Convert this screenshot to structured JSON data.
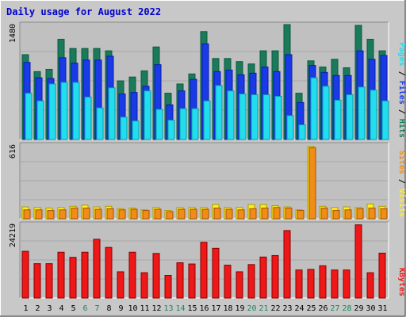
{
  "chart_data": {
    "type": "bar",
    "title": "Daily usage for August 2022",
    "categories": [
      "1",
      "2",
      "3",
      "4",
      "5",
      "6",
      "7",
      "8",
      "9",
      "10",
      "11",
      "12",
      "13",
      "14",
      "15",
      "16",
      "17",
      "18",
      "19",
      "20",
      "21",
      "22",
      "23",
      "24",
      "25",
      "26",
      "27",
      "28",
      "29",
      "30",
      "31"
    ],
    "weekend_days": [
      "6",
      "7",
      "13",
      "14",
      "20",
      "21",
      "27",
      "28"
    ],
    "panels": [
      {
        "id": "hits",
        "ymax_label": "1480",
        "ylim": [
          0,
          1480
        ],
        "labels": [
          "Pages",
          "Files",
          "Hits"
        ],
        "series": [
          {
            "name": "Hits",
            "color": "#1a7a5a",
            "values": [
              1100,
              880,
              910,
              1300,
              1180,
              1180,
              1180,
              1150,
              760,
              810,
              890,
              1200,
              600,
              720,
              850,
              1400,
              1050,
              1050,
              1010,
              980,
              1150,
              1150,
              1490,
              600,
              1020,
              940,
              1040,
              930,
              1480,
              1300,
              1150
            ]
          },
          {
            "name": "Files",
            "color": "#1a3ae8",
            "values": [
              1000,
              800,
              790,
              1060,
              990,
              1030,
              1030,
              1080,
              590,
              610,
              690,
              970,
              450,
              630,
              780,
              1240,
              880,
              900,
              840,
              860,
              940,
              880,
              1100,
              480,
              960,
              870,
              830,
              830,
              1150,
              1040,
              1090
            ]
          },
          {
            "name": "Pages",
            "color": "#22ddee",
            "values": [
              600,
              500,
              720,
              740,
              740,
              550,
              410,
              670,
              290,
              240,
              630,
              390,
              250,
              400,
              400,
              500,
              700,
              630,
              590,
              580,
              580,
              560,
              310,
              190,
              800,
              690,
              510,
              580,
              680,
              640,
              500
            ]
          }
        ]
      },
      {
        "id": "visits",
        "ymax_label": "616",
        "ylim": [
          0,
          616
        ],
        "labels": [
          "Sites",
          "Visits"
        ],
        "series": [
          {
            "name": "Visits",
            "color": "#ffee22",
            "values": [
              100,
              95,
              90,
              95,
              105,
              115,
              100,
              105,
              85,
              90,
              75,
              95,
              70,
              95,
              95,
              95,
              120,
              95,
              95,
              120,
              120,
              110,
              100,
              75,
              610,
              105,
              95,
              100,
              95,
              125,
              105
            ]
          },
          {
            "name": "Sites",
            "color": "#f08c18",
            "values": [
              75,
              75,
              70,
              75,
              90,
              90,
              80,
              85,
              75,
              80,
              70,
              80,
              60,
              80,
              80,
              80,
              90,
              80,
              75,
              85,
              90,
              95,
              90,
              70,
              600,
              90,
              70,
              75,
              85,
              90,
              85
            ]
          }
        ]
      },
      {
        "id": "kbytes",
        "ymax_label": "24219",
        "ylim": [
          0,
          24219
        ],
        "labels": [
          "KBytes"
        ],
        "series": [
          {
            "name": "KBytes",
            "color": "#ee1818",
            "values": [
              15500,
              11400,
              11400,
              15200,
              13500,
              15200,
              19500,
              16800,
              8700,
              15200,
              8400,
              14800,
              7500,
              11700,
              11300,
              18500,
              16500,
              10900,
              8700,
              11100,
              13600,
              14100,
              22400,
              9300,
              9500,
              10700,
              9300,
              9300,
              24300,
              8400,
              14900
            ]
          }
        ]
      }
    ]
  }
}
